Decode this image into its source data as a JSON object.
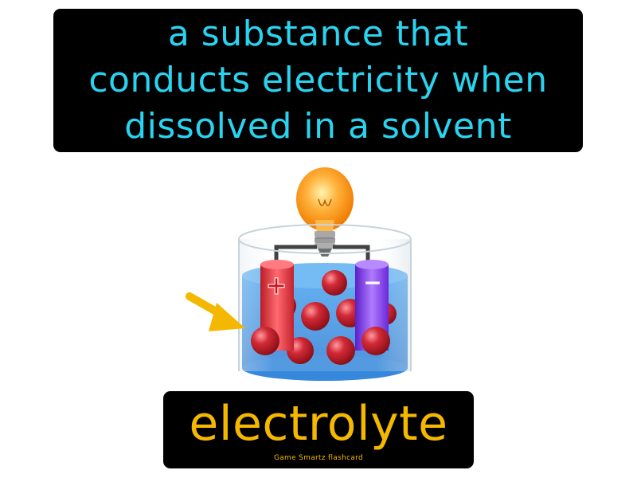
{
  "definition": {
    "lines": [
      "a substance that",
      "conducts electricity when",
      "dissolved in a solvent"
    ]
  },
  "term": "electrolyte",
  "credit": "Game Smartz flashcard",
  "illustration": {
    "positive_symbol": "+",
    "negative_symbol": "−"
  },
  "colors": {
    "definition_text": "#28d4f0",
    "term_text": "#f5b800",
    "panel_background": "#000000",
    "solution": "#3a8fe0",
    "positive_electrode": "#e8323a",
    "negative_electrode": "#8a3cf0",
    "ion": "#c8202e",
    "arrow": "#f5b800",
    "bulb": "#ffa21a"
  }
}
